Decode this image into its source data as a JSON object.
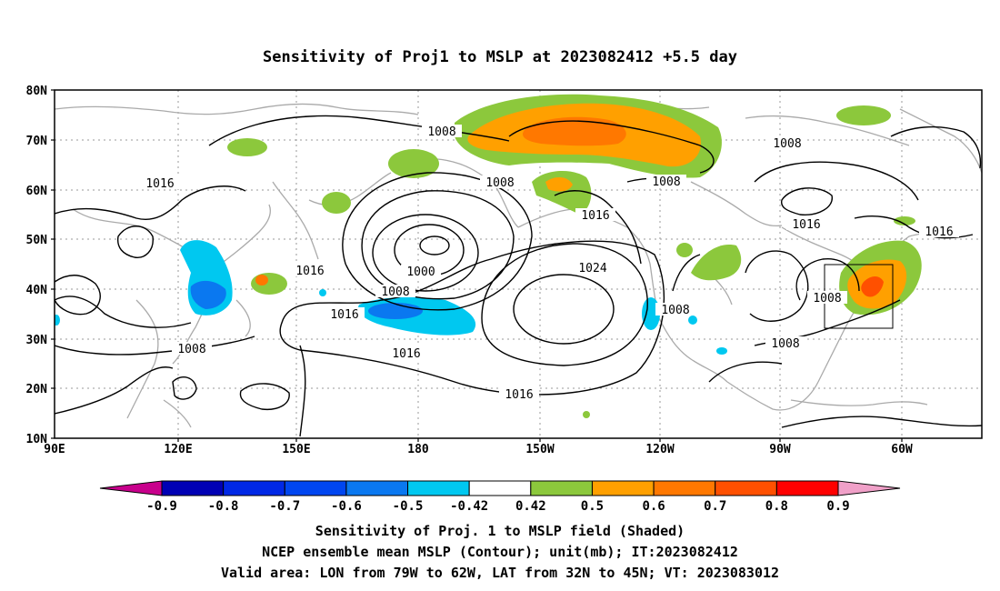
{
  "title": "Sensitivity of Proj1 to MSLP at 2023082412 +5.5 day",
  "lat_labels": [
    "80N",
    "70N",
    "60N",
    "50N",
    "40N",
    "30N",
    "20N",
    "10N"
  ],
  "lon_labels": [
    "90E",
    "120E",
    "150E",
    "180",
    "150W",
    "120W",
    "90W",
    "60W"
  ],
  "contour_labels": [
    "1008",
    "1008",
    "1008",
    "1008",
    "1016",
    "1016",
    "1016",
    "1016",
    "1016",
    "1016",
    "1016",
    "1000",
    "1008",
    "1024",
    "1008",
    "1008",
    "1008",
    "1016",
    "1008"
  ],
  "colorbar": {
    "labels": [
      "-0.9",
      "-0.8",
      "-0.7",
      "-0.6",
      "-0.5",
      "-0.42",
      "0.42",
      "0.5",
      "0.6",
      "0.7",
      "0.8",
      "0.9"
    ],
    "colors": [
      "#c8008c",
      "#0000b4",
      "#0028e6",
      "#0046f0",
      "#0a78f0",
      "#00c8f0",
      "#ffffff",
      "#8cc83c",
      "#ffa000",
      "#ff7800",
      "#ff5000",
      "#ff0000",
      "#f0a0c8"
    ]
  },
  "captions": [
    "Sensitivity of Proj. 1 to MSLP field (Shaded)",
    "NCEP ensemble mean MSLP (Contour); unit(mb); IT:2023082412",
    "Valid area: LON from 79W to 62W, LAT from 32N to 45N; VT: 2023083012"
  ]
}
